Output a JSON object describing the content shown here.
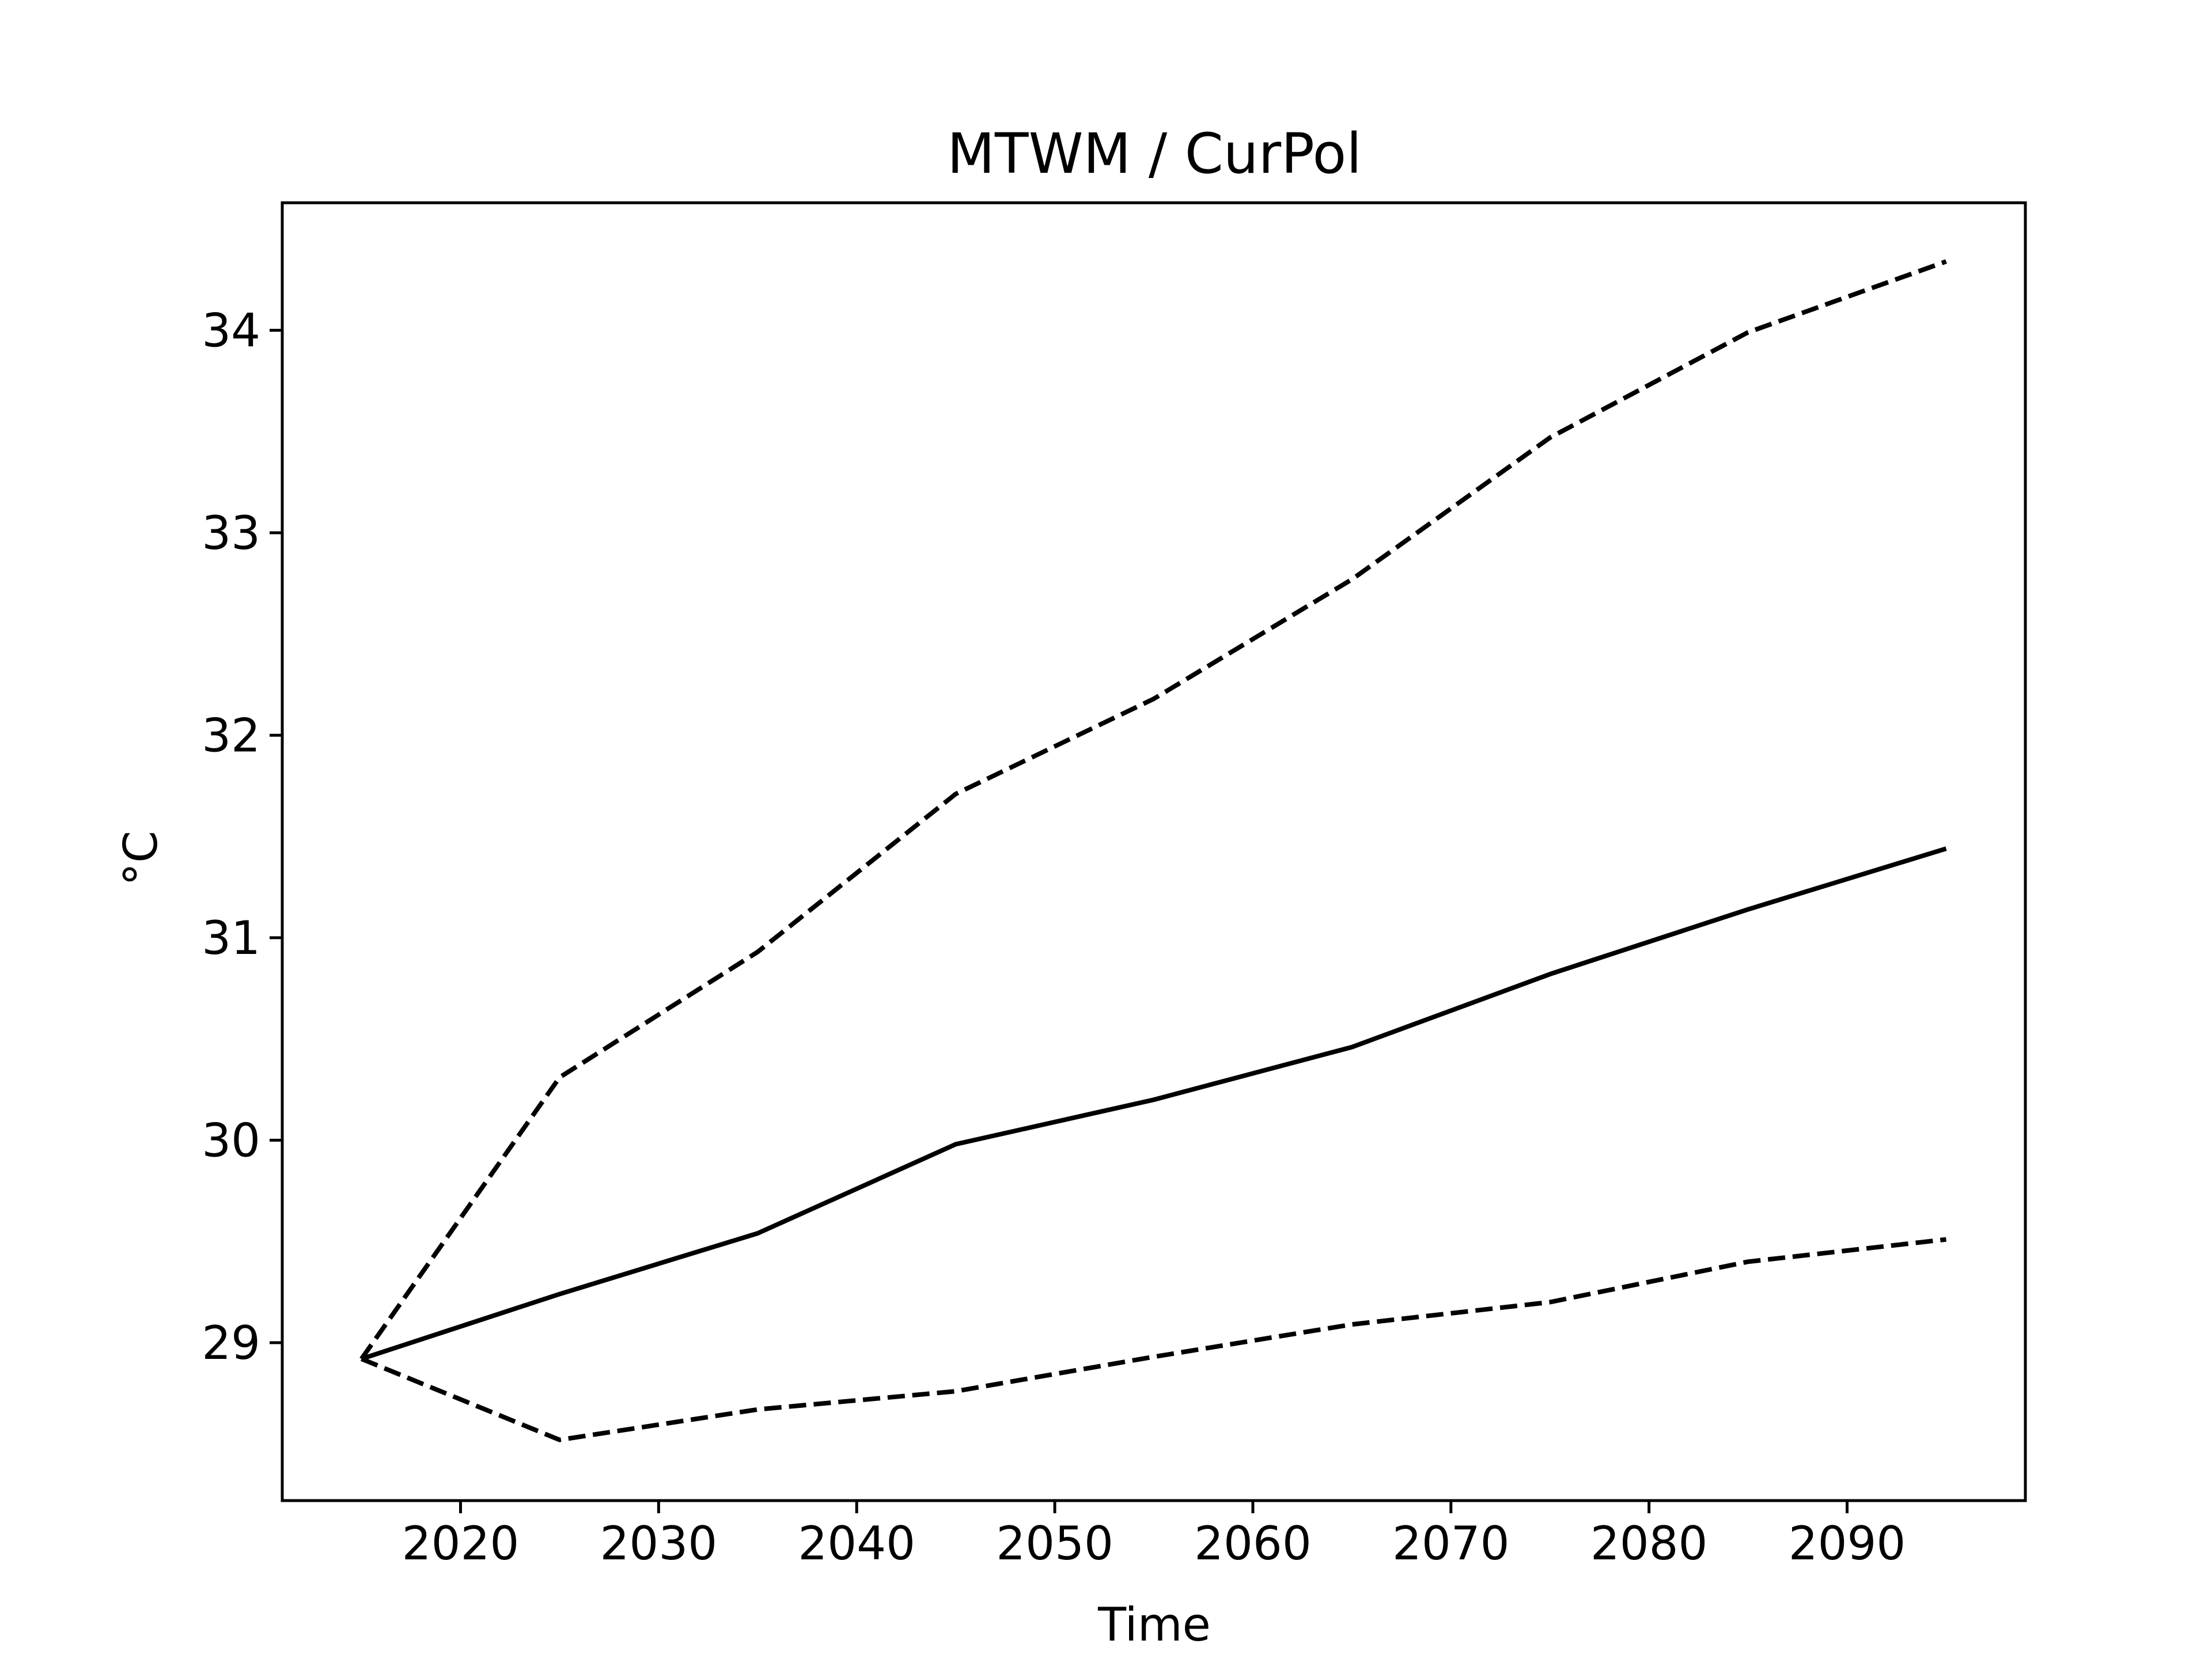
{
  "chart_data": {
    "type": "line",
    "title": "MTWM / CurPol",
    "xlabel": "Time",
    "ylabel": "°C",
    "xlim": [
      2011,
      2099
    ],
    "ylim": [
      28.22,
      34.63
    ],
    "xticks": [
      2020,
      2030,
      2040,
      2050,
      2060,
      2070,
      2080,
      2090
    ],
    "yticks": [
      29,
      30,
      31,
      32,
      33,
      34
    ],
    "grid": false,
    "legend": false,
    "x": [
      2015,
      2025,
      2035,
      2045,
      2055,
      2065,
      2075,
      2085,
      2095
    ],
    "series": [
      {
        "style": "solid",
        "values": [
          28.92,
          29.24,
          29.54,
          29.98,
          30.2,
          30.46,
          30.82,
          31.14,
          31.44
        ]
      },
      {
        "style": "dashed",
        "values": [
          28.92,
          30.31,
          30.93,
          31.71,
          32.18,
          32.77,
          33.47,
          33.99,
          34.34
        ]
      },
      {
        "style": "dashed",
        "values": [
          28.92,
          28.52,
          28.67,
          28.76,
          28.93,
          29.09,
          29.2,
          29.4,
          29.51
        ]
      }
    ],
    "colors": {
      "line": "#000000",
      "axes": "#000000",
      "background": "#ffffff"
    }
  }
}
